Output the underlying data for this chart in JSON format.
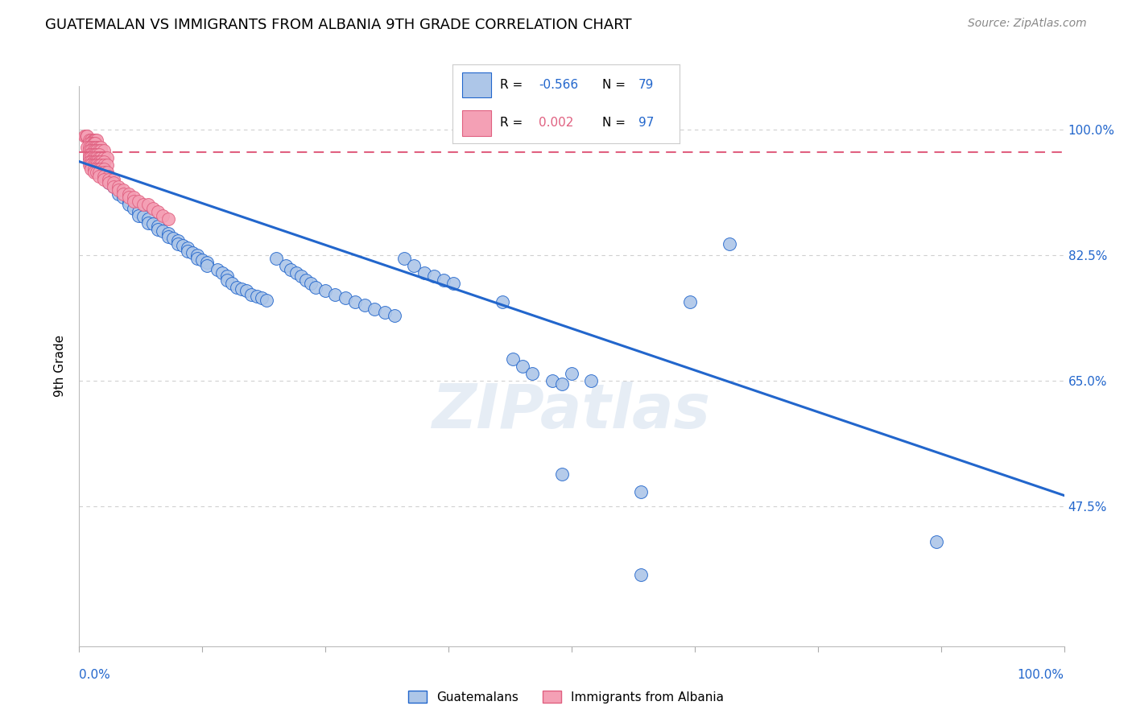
{
  "title": "GUATEMALAN VS IMMIGRANTS FROM ALBANIA 9TH GRADE CORRELATION CHART",
  "source": "Source: ZipAtlas.com",
  "ylabel": "9th Grade",
  "xlim": [
    0.0,
    1.0
  ],
  "ylim": [
    0.28,
    1.06
  ],
  "yticks": [
    0.475,
    0.65,
    0.825,
    1.0
  ],
  "ytick_labels": [
    "47.5%",
    "65.0%",
    "82.5%",
    "100.0%"
  ],
  "scatter_color_blue": "#adc6e8",
  "scatter_color_pink": "#f4a0b5",
  "line_color_blue": "#2266cc",
  "line_color_pink": "#e06080",
  "legend_label_blue": "Guatemalans",
  "legend_label_pink": "Immigrants from Albania",
  "watermark": "ZIPatlas",
  "blue_scatter": [
    [
      0.01,
      0.96
    ],
    [
      0.015,
      0.95
    ],
    [
      0.02,
      0.945
    ],
    [
      0.02,
      0.94
    ],
    [
      0.025,
      0.935
    ],
    [
      0.03,
      0.93
    ],
    [
      0.03,
      0.925
    ],
    [
      0.035,
      0.92
    ],
    [
      0.04,
      0.915
    ],
    [
      0.04,
      0.91
    ],
    [
      0.045,
      0.905
    ],
    [
      0.05,
      0.9
    ],
    [
      0.05,
      0.895
    ],
    [
      0.055,
      0.89
    ],
    [
      0.06,
      0.885
    ],
    [
      0.06,
      0.88
    ],
    [
      0.065,
      0.878
    ],
    [
      0.07,
      0.875
    ],
    [
      0.07,
      0.87
    ],
    [
      0.075,
      0.868
    ],
    [
      0.08,
      0.865
    ],
    [
      0.08,
      0.86
    ],
    [
      0.085,
      0.858
    ],
    [
      0.09,
      0.855
    ],
    [
      0.09,
      0.85
    ],
    [
      0.095,
      0.848
    ],
    [
      0.1,
      0.845
    ],
    [
      0.1,
      0.84
    ],
    [
      0.105,
      0.838
    ],
    [
      0.11,
      0.835
    ],
    [
      0.11,
      0.83
    ],
    [
      0.115,
      0.828
    ],
    [
      0.12,
      0.825
    ],
    [
      0.12,
      0.82
    ],
    [
      0.125,
      0.818
    ],
    [
      0.13,
      0.815
    ],
    [
      0.13,
      0.81
    ],
    [
      0.14,
      0.805
    ],
    [
      0.145,
      0.8
    ],
    [
      0.15,
      0.795
    ],
    [
      0.15,
      0.79
    ],
    [
      0.155,
      0.785
    ],
    [
      0.16,
      0.78
    ],
    [
      0.165,
      0.778
    ],
    [
      0.17,
      0.775
    ],
    [
      0.175,
      0.77
    ],
    [
      0.18,
      0.768
    ],
    [
      0.185,
      0.765
    ],
    [
      0.19,
      0.762
    ],
    [
      0.2,
      0.82
    ],
    [
      0.21,
      0.81
    ],
    [
      0.215,
      0.805
    ],
    [
      0.22,
      0.8
    ],
    [
      0.225,
      0.795
    ],
    [
      0.23,
      0.79
    ],
    [
      0.235,
      0.785
    ],
    [
      0.24,
      0.78
    ],
    [
      0.25,
      0.775
    ],
    [
      0.26,
      0.77
    ],
    [
      0.27,
      0.765
    ],
    [
      0.28,
      0.76
    ],
    [
      0.29,
      0.755
    ],
    [
      0.3,
      0.75
    ],
    [
      0.31,
      0.745
    ],
    [
      0.32,
      0.74
    ],
    [
      0.33,
      0.82
    ],
    [
      0.34,
      0.81
    ],
    [
      0.35,
      0.8
    ],
    [
      0.36,
      0.795
    ],
    [
      0.37,
      0.79
    ],
    [
      0.38,
      0.785
    ],
    [
      0.43,
      0.76
    ],
    [
      0.44,
      0.68
    ],
    [
      0.45,
      0.67
    ],
    [
      0.46,
      0.66
    ],
    [
      0.48,
      0.65
    ],
    [
      0.49,
      0.645
    ],
    [
      0.5,
      0.66
    ],
    [
      0.52,
      0.65
    ],
    [
      0.62,
      0.76
    ],
    [
      0.66,
      0.84
    ],
    [
      0.49,
      0.52
    ],
    [
      0.57,
      0.495
    ],
    [
      0.87,
      0.425
    ],
    [
      0.57,
      0.38
    ]
  ],
  "pink_scatter": [
    [
      0.005,
      0.99
    ],
    [
      0.007,
      0.99
    ],
    [
      0.008,
      0.99
    ],
    [
      0.01,
      0.985
    ],
    [
      0.012,
      0.985
    ],
    [
      0.014,
      0.985
    ],
    [
      0.015,
      0.985
    ],
    [
      0.016,
      0.985
    ],
    [
      0.018,
      0.985
    ],
    [
      0.01,
      0.98
    ],
    [
      0.012,
      0.98
    ],
    [
      0.014,
      0.98
    ],
    [
      0.015,
      0.98
    ],
    [
      0.016,
      0.98
    ],
    [
      0.008,
      0.975
    ],
    [
      0.01,
      0.975
    ],
    [
      0.012,
      0.975
    ],
    [
      0.014,
      0.975
    ],
    [
      0.016,
      0.975
    ],
    [
      0.018,
      0.975
    ],
    [
      0.02,
      0.975
    ],
    [
      0.022,
      0.975
    ],
    [
      0.01,
      0.97
    ],
    [
      0.012,
      0.97
    ],
    [
      0.014,
      0.97
    ],
    [
      0.016,
      0.97
    ],
    [
      0.018,
      0.97
    ],
    [
      0.02,
      0.97
    ],
    [
      0.022,
      0.97
    ],
    [
      0.025,
      0.97
    ],
    [
      0.01,
      0.965
    ],
    [
      0.012,
      0.965
    ],
    [
      0.014,
      0.965
    ],
    [
      0.016,
      0.965
    ],
    [
      0.018,
      0.965
    ],
    [
      0.02,
      0.965
    ],
    [
      0.01,
      0.96
    ],
    [
      0.012,
      0.96
    ],
    [
      0.014,
      0.96
    ],
    [
      0.016,
      0.96
    ],
    [
      0.018,
      0.96
    ],
    [
      0.02,
      0.96
    ],
    [
      0.022,
      0.96
    ],
    [
      0.025,
      0.96
    ],
    [
      0.028,
      0.96
    ],
    [
      0.01,
      0.955
    ],
    [
      0.012,
      0.955
    ],
    [
      0.014,
      0.955
    ],
    [
      0.016,
      0.955
    ],
    [
      0.018,
      0.955
    ],
    [
      0.02,
      0.955
    ],
    [
      0.022,
      0.955
    ],
    [
      0.025,
      0.955
    ],
    [
      0.01,
      0.95
    ],
    [
      0.012,
      0.95
    ],
    [
      0.014,
      0.95
    ],
    [
      0.016,
      0.95
    ],
    [
      0.018,
      0.95
    ],
    [
      0.02,
      0.95
    ],
    [
      0.022,
      0.95
    ],
    [
      0.025,
      0.95
    ],
    [
      0.028,
      0.95
    ],
    [
      0.012,
      0.945
    ],
    [
      0.015,
      0.945
    ],
    [
      0.018,
      0.945
    ],
    [
      0.02,
      0.945
    ],
    [
      0.022,
      0.945
    ],
    [
      0.025,
      0.945
    ],
    [
      0.015,
      0.94
    ],
    [
      0.018,
      0.94
    ],
    [
      0.02,
      0.94
    ],
    [
      0.025,
      0.94
    ],
    [
      0.028,
      0.94
    ],
    [
      0.02,
      0.935
    ],
    [
      0.025,
      0.935
    ],
    [
      0.03,
      0.935
    ],
    [
      0.025,
      0.93
    ],
    [
      0.03,
      0.93
    ],
    [
      0.035,
      0.93
    ],
    [
      0.03,
      0.925
    ],
    [
      0.035,
      0.925
    ],
    [
      0.035,
      0.92
    ],
    [
      0.04,
      0.92
    ],
    [
      0.04,
      0.915
    ],
    [
      0.045,
      0.915
    ],
    [
      0.045,
      0.91
    ],
    [
      0.05,
      0.91
    ],
    [
      0.05,
      0.905
    ],
    [
      0.055,
      0.905
    ],
    [
      0.055,
      0.9
    ],
    [
      0.06,
      0.9
    ],
    [
      0.065,
      0.895
    ],
    [
      0.07,
      0.895
    ],
    [
      0.075,
      0.89
    ],
    [
      0.08,
      0.885
    ],
    [
      0.085,
      0.88
    ],
    [
      0.09,
      0.875
    ]
  ],
  "blue_line_x": [
    0.0,
    1.0
  ],
  "blue_line_y": [
    0.955,
    0.49
  ],
  "pink_line_y": 0.968,
  "grid_color": "#d0d0d0",
  "background_color": "#ffffff"
}
